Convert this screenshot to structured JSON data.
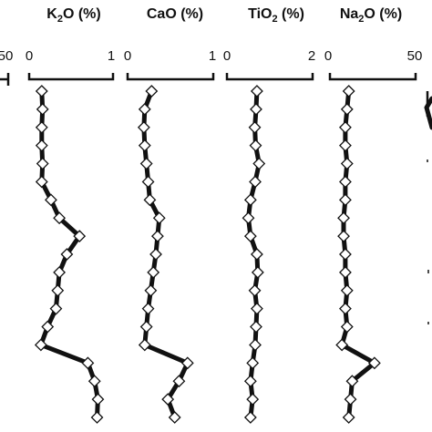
{
  "chart_data": [
    {
      "type": "line",
      "orientation": "vertical-profile",
      "title": "",
      "xlabel": "",
      "ylabel": "",
      "xlim": [
        null,
        50
      ],
      "ticks": [
        {
          "value": 50,
          "label": "50"
        }
      ],
      "series": []
    },
    {
      "type": "line",
      "orientation": "vertical-profile",
      "title_parts": {
        "base": "K",
        "sub": "2",
        "rest": "O (%)"
      },
      "title": "",
      "xlabel": "",
      "ylabel": "",
      "xlim": [
        0,
        1
      ],
      "ticks": [
        {
          "value": 0,
          "label": "0"
        },
        {
          "value": 1,
          "label": "1"
        }
      ],
      "series": [
        {
          "x": [
            0.15,
            0.16,
            0.15,
            0.15,
            0.16,
            0.15,
            0.26,
            0.36,
            0.6,
            0.45,
            0.36,
            0.34,
            0.32,
            0.22,
            0.14,
            0.7,
            0.78,
            0.82,
            0.81
          ]
        }
      ]
    },
    {
      "type": "line",
      "orientation": "vertical-profile",
      "title": "CaO (%)",
      "xlabel": "",
      "ylabel": "",
      "xlim": [
        0,
        1
      ],
      "ticks": [
        {
          "value": 0,
          "label": "0"
        },
        {
          "value": 1,
          "label": "1"
        }
      ],
      "series": [
        {
          "x": [
            0.28,
            0.2,
            0.19,
            0.2,
            0.22,
            0.24,
            0.26,
            0.37,
            0.35,
            0.33,
            0.3,
            0.27,
            0.24,
            0.22,
            0.2,
            0.7,
            0.6,
            0.47,
            0.55
          ]
        }
      ]
    },
    {
      "type": "line",
      "orientation": "vertical-profile",
      "title_parts": {
        "base": "TiO",
        "sub": "2",
        "rest": " (%)"
      },
      "title": "",
      "xlabel": "",
      "ylabel": "",
      "xlim": [
        0,
        2
      ],
      "ticks": [
        {
          "value": 0,
          "label": "0"
        },
        {
          "value": 2,
          "label": "2"
        }
      ],
      "series": [
        {
          "x": [
            0.7,
            0.68,
            0.65,
            0.67,
            0.75,
            0.66,
            0.55,
            0.5,
            0.55,
            0.7,
            0.72,
            0.65,
            0.7,
            0.68,
            0.66,
            0.6,
            0.55,
            0.6,
            0.55
          ]
        }
      ]
    },
    {
      "type": "line",
      "orientation": "vertical-profile",
      "title_parts": {
        "base": "Na",
        "sub": "2",
        "rest": "O (%)"
      },
      "title": "",
      "xlabel": "",
      "ylabel": "",
      "xlim": [
        0,
        50
      ],
      "ticks": [
        {
          "value": 0,
          "label": "0"
        },
        {
          "value": 50,
          "label": "50"
        }
      ],
      "series": [
        {
          "x": [
            11,
            10,
            9,
            9,
            10,
            9,
            9,
            8,
            8,
            9,
            9,
            10,
            9,
            10,
            7,
            26,
            13,
            12,
            11
          ]
        }
      ]
    }
  ],
  "depth_samples": 19
}
